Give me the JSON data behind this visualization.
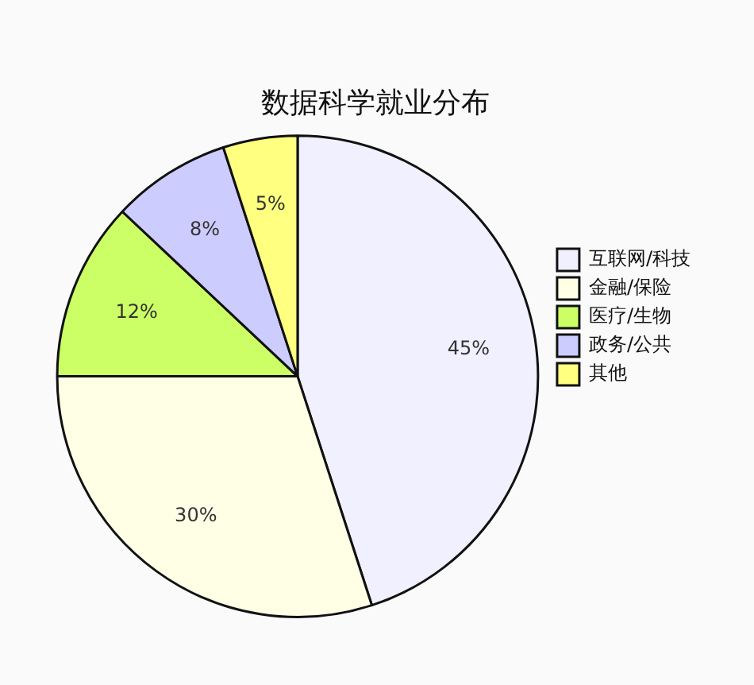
{
  "chart_data": {
    "type": "pie",
    "title": "数据科学就业分布",
    "categories": [
      "互联网/科技",
      "金融/保险",
      "医疗/生物",
      "政务/公共",
      "其他"
    ],
    "values": [
      45,
      30,
      12,
      8,
      5
    ],
    "colors": [
      "#f0f0ff",
      "#ffffe6",
      "#ccff66",
      "#ccccff",
      "#ffff80"
    ],
    "value_labels": [
      "45%",
      "30%",
      "12%",
      "8%",
      "5%"
    ],
    "legend": "right"
  }
}
